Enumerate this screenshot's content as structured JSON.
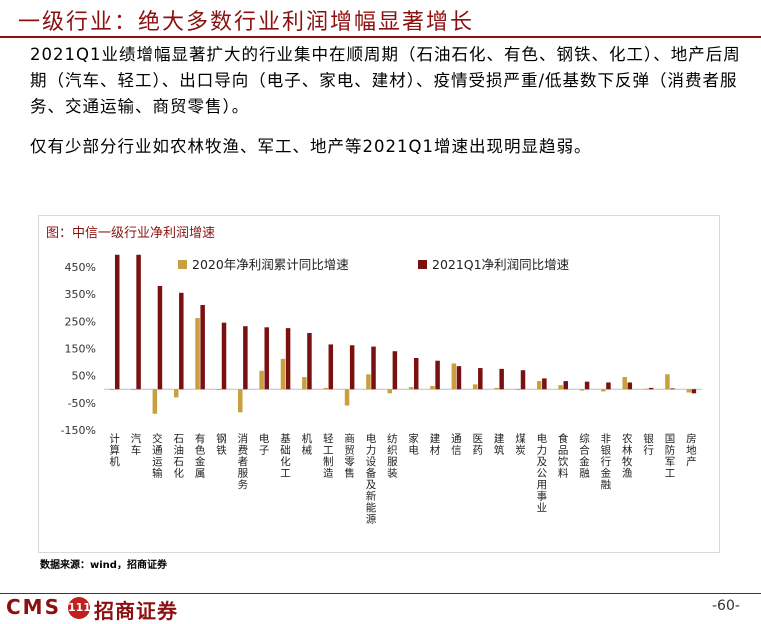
{
  "title": "一级行业：绝大多数行业利润增幅显著增长",
  "paragraphs": [
    "2021Q1业绩增幅显著扩大的行业集中在顺周期（石油石化、有色、钢铁、化工）、地产后周期（汽车、轻工）、出口导向（电子、家电、建材）、疫情受损严重/低基数下反弹（消费者服务、交通运输、商贸零售）。",
    "仅有少部分行业如农林牧渔、军工、地产等2021Q1增速出现明显趋弱。"
  ],
  "chart_caption": "图：中信一级行业净利润增速",
  "source": "数据来源：wind，招商证券",
  "footer": {
    "logo_latin": "CMS",
    "logo_mark": "111",
    "logo_cn": "招商证券",
    "page": "-60-"
  },
  "colors": {
    "series_2020": "#c8a040",
    "series_2021": "#7a1010",
    "brand": "#8b1111"
  },
  "chart_data": {
    "type": "bar",
    "title": "中信一级行业净利润增速",
    "ylim": [
      -150,
      500
    ],
    "yticks": [
      -150,
      -50,
      50,
      150,
      250,
      350,
      450
    ],
    "ytick_format": "percent",
    "grid": false,
    "legend_position": "top-right",
    "categories": [
      "计算机",
      "汽车",
      "交通运输",
      "石油石化",
      "有色金属",
      "钢铁",
      "消费者服务",
      "电子",
      "基础化工",
      "机械",
      "轻工制造",
      "商贸零售",
      "电力设备及新能源",
      "纺织服装",
      "家电",
      "建材",
      "通信",
      "医药",
      "建筑",
      "煤炭",
      "电力及公用事业",
      "食品饮料",
      "综合金融",
      "非银行金融",
      "农林牧渔",
      "银行",
      "国防军工",
      "房地产"
    ],
    "series": [
      {
        "name": "2020年净利润累计同比增速",
        "color": "#c8a040",
        "values": [
          -3,
          0,
          -90,
          -30,
          262,
          0,
          -85,
          68,
          112,
          45,
          5,
          -60,
          55,
          -15,
          8,
          12,
          95,
          18,
          5,
          0,
          30,
          15,
          -5,
          -8,
          45,
          2,
          55,
          -12
        ]
      },
      {
        "name": "2021Q1净利润同比增速",
        "color": "#7a1010",
        "values": [
          495,
          495,
          380,
          355,
          310,
          245,
          232,
          228,
          225,
          207,
          165,
          162,
          157,
          140,
          115,
          105,
          85,
          78,
          75,
          70,
          40,
          30,
          28,
          25,
          25,
          5,
          3,
          -15
        ]
      }
    ]
  }
}
